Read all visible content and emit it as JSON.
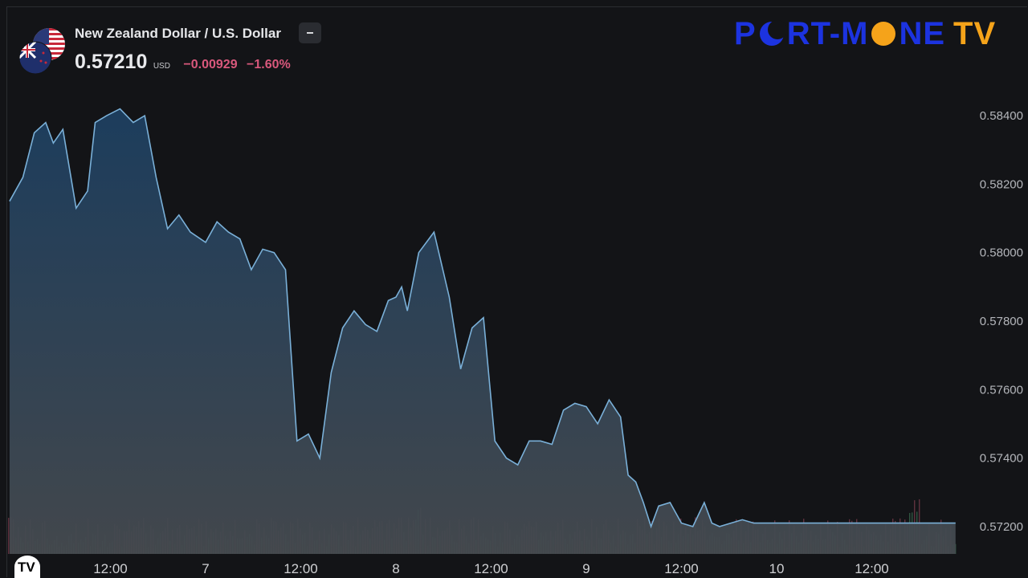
{
  "header": {
    "title": "New Zealand Dollar / U.S. Dollar",
    "price": "0.57210",
    "currency": "USD",
    "change": "−0.00929",
    "change_pct": "−1.60%"
  },
  "brand": {
    "part1": "P",
    "part2": "RT-M",
    "part3": "NE",
    "part4": "TV",
    "color_primary": "#1c33e0",
    "color_accent": "#f5a31a"
  },
  "icons": {
    "flags": "nzd-usd-flags-icon",
    "collapse": "collapse-icon",
    "logo": "tradingview-logo-icon"
  },
  "logo_text": "TV",
  "colors": {
    "line": "#6fa7d0",
    "area_top": "#1e3e5e",
    "area_bottom": "#3e4347",
    "background": "#131417",
    "volume_up": "#3a6b4f",
    "volume_down": "#7a3b4c"
  },
  "chart_data": {
    "type": "area",
    "title": "New Zealand Dollar / U.S. Dollar",
    "ylim": [
      0.5712,
      0.5848
    ],
    "yticks": [
      "0.58400",
      "0.58200",
      "0.58000",
      "0.57800",
      "0.57600",
      "0.57400",
      "0.57200"
    ],
    "ytick_values": [
      0.584,
      0.582,
      0.58,
      0.578,
      0.576,
      0.574,
      0.572
    ],
    "xticks": [
      "12:00",
      "7",
      "12:00",
      "8",
      "12:00",
      "9",
      "12:00",
      "10",
      "12:00"
    ],
    "xtick_positions": [
      0.5,
      1,
      1.5,
      2,
      2.5,
      3,
      3.5,
      4,
      4.5
    ],
    "x_range": [
      -0.03,
      4.97
    ],
    "series": [
      {
        "x": [
          -0.03,
          0.04,
          0.1,
          0.16,
          0.2,
          0.25,
          0.32,
          0.38,
          0.42,
          0.48,
          0.55,
          0.62,
          0.68,
          0.74,
          0.8,
          0.86,
          0.92,
          1.0,
          1.06,
          1.12,
          1.18,
          1.24,
          1.3,
          1.36,
          1.42,
          1.48,
          1.54,
          1.6,
          1.66,
          1.72,
          1.78,
          1.84,
          1.9,
          1.96,
          2.0,
          2.03,
          2.06,
          2.12,
          2.2,
          2.28,
          2.34,
          2.4,
          2.46,
          2.52,
          2.58,
          2.64,
          2.7,
          2.76,
          2.82,
          2.88,
          2.94,
          3.0,
          3.06,
          3.12,
          3.18,
          3.22,
          3.26,
          3.3,
          3.34,
          3.38,
          3.44,
          3.5,
          3.56,
          3.62,
          3.66,
          3.7,
          3.76,
          3.82,
          3.88,
          3.94,
          4.0,
          4.06,
          4.12,
          4.18,
          4.24,
          4.3,
          4.36,
          4.42,
          4.48,
          4.54,
          4.6,
          4.66,
          4.7,
          4.74,
          4.78,
          4.82,
          4.86,
          4.9,
          4.94,
          4.97
        ],
        "y": [
          0.5815,
          0.5822,
          0.5835,
          0.5838,
          0.5832,
          0.5836,
          0.5813,
          0.5818,
          0.5838,
          0.584,
          0.5842,
          0.5838,
          0.584,
          0.5822,
          0.5807,
          0.5811,
          0.5806,
          0.5803,
          0.5809,
          0.5806,
          0.5804,
          0.5795,
          0.5801,
          0.58,
          0.5795,
          0.5745,
          0.5747,
          0.574,
          0.5765,
          0.5778,
          0.5783,
          0.5779,
          0.5777,
          0.5786,
          0.5787,
          0.579,
          0.5783,
          0.58,
          0.5806,
          0.5787,
          0.5766,
          0.5778,
          0.5781,
          0.5745,
          0.574,
          0.5738,
          0.5745,
          0.5745,
          0.5744,
          0.5754,
          0.5756,
          0.5755,
          0.575,
          0.5757,
          0.5752,
          0.5735,
          0.5733,
          0.5727,
          0.572,
          0.5726,
          0.5727,
          0.5721,
          0.572,
          0.5727,
          0.5721,
          0.572,
          0.5721,
          0.5722,
          0.5721,
          0.5721,
          0.5721,
          0.5721,
          0.5721,
          0.5721,
          0.5721,
          0.5721,
          0.5721,
          0.5721,
          0.5721,
          0.5721,
          0.5721,
          0.5721,
          0.5721,
          0.5721,
          0.5721,
          0.5721,
          0.5721,
          0.5721,
          0.5721,
          0.5721
        ]
      }
    ],
    "volume_max_ratio": 1.0,
    "grid": false
  }
}
